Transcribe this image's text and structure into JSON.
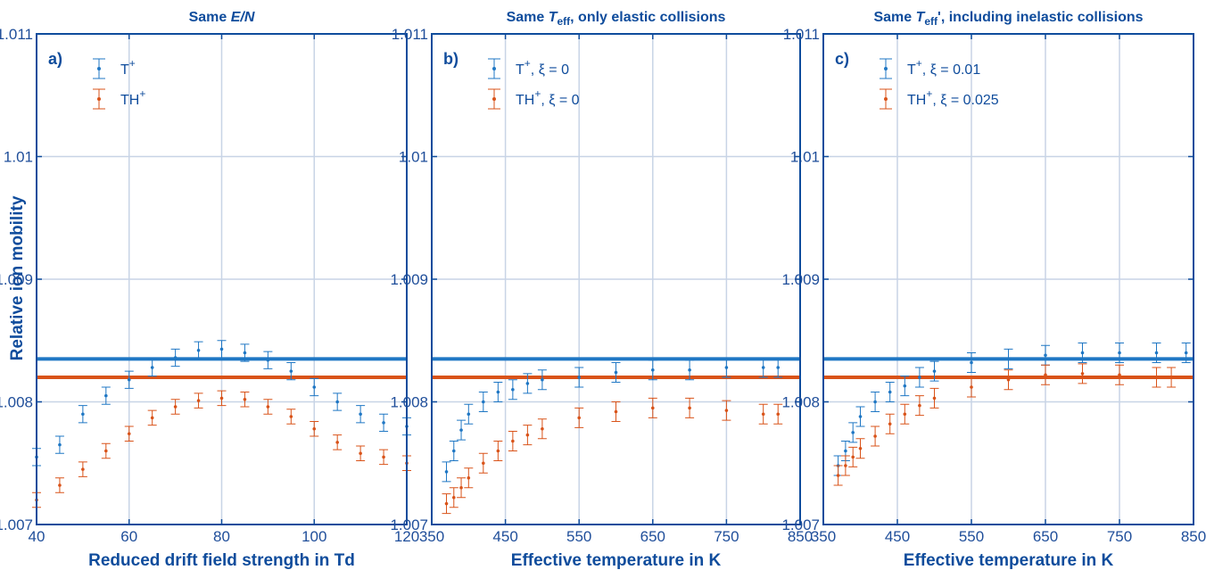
{
  "figure": {
    "ylabel": "Relative ion mobility",
    "colors": {
      "axis": "#0f4c9c",
      "grid": "#c8d4e6",
      "series1": "#1f77c4",
      "series2": "#d95319"
    }
  },
  "chart_data": [
    {
      "type": "scatter",
      "panel": "a)",
      "title": {
        "pre": "Same ",
        "italic": "E/N",
        "sub": "",
        "post": ""
      },
      "xlabel": "Reduced drift field strength in Td",
      "ylabel": "Relative ion mobility",
      "xlim": [
        40,
        120
      ],
      "ylim": [
        1.007,
        1.011
      ],
      "xticks": [
        40,
        60,
        80,
        100,
        120
      ],
      "yticks": [
        1.007,
        1.008,
        1.009,
        1.01,
        1.011
      ],
      "ytick_labels": [
        "1.007",
        "1.008",
        "1.009",
        "1.01",
        "1.011"
      ],
      "grid": true,
      "legend_position": "top-left",
      "reference_lines": [
        {
          "series": "T+",
          "y": 1.00835
        },
        {
          "series": "TH+",
          "y": 1.0082
        }
      ],
      "series": [
        {
          "name": "T+",
          "label_base": "T",
          "label_sup": "+",
          "label_suffix": "",
          "color": "#1f77c4",
          "errorbar": 7e-05,
          "x": [
            40,
            45,
            50,
            55,
            60,
            65,
            70,
            75,
            80,
            85,
            90,
            95,
            100,
            105,
            110,
            115,
            120
          ],
          "y": [
            1.00755,
            1.00765,
            1.0079,
            1.00805,
            1.00818,
            1.00828,
            1.00836,
            1.00842,
            1.00843,
            1.0084,
            1.00834,
            1.00825,
            1.00812,
            1.008,
            1.0079,
            1.00783,
            1.0078
          ]
        },
        {
          "name": "TH+",
          "label_base": "TH",
          "label_sup": "+",
          "label_suffix": "",
          "color": "#d95319",
          "errorbar": 6e-05,
          "x": [
            40,
            45,
            50,
            55,
            60,
            65,
            70,
            75,
            80,
            85,
            90,
            95,
            100,
            105,
            110,
            115,
            120
          ],
          "y": [
            1.0072,
            1.00732,
            1.00745,
            1.0076,
            1.00774,
            1.00787,
            1.00796,
            1.00801,
            1.00803,
            1.00802,
            1.00796,
            1.00788,
            1.00778,
            1.00767,
            1.00758,
            1.00755,
            1.0075
          ]
        }
      ]
    },
    {
      "type": "scatter",
      "panel": "b)",
      "title": {
        "pre": "Same ",
        "italic": "T",
        "sub": "eff",
        "post": ", only elastic collisions"
      },
      "xlabel": "Effective temperature in K",
      "ylabel": "",
      "xlim": [
        350,
        850
      ],
      "ylim": [
        1.007,
        1.011
      ],
      "xticks": [
        350,
        450,
        550,
        650,
        750,
        850
      ],
      "yticks": [
        1.007,
        1.008,
        1.009,
        1.01,
        1.011
      ],
      "ytick_labels": [
        "1.007",
        "1.008",
        "1.009",
        "1.01",
        "1.011"
      ],
      "grid": true,
      "legend_position": "top-left",
      "reference_lines": [
        {
          "series": "T+",
          "y": 1.00835
        },
        {
          "series": "TH+",
          "y": 1.0082
        }
      ],
      "series": [
        {
          "name": "T+, ξ = 0",
          "label_base": "T",
          "label_sup": "+",
          "label_suffix": ", ξ = 0",
          "color": "#1f77c4",
          "errorbar": 8e-05,
          "x": [
            370,
            380,
            390,
            400,
            420,
            440,
            460,
            480,
            500,
            550,
            600,
            650,
            700,
            750,
            800,
            820
          ],
          "y": [
            1.00743,
            1.0076,
            1.00777,
            1.0079,
            1.008,
            1.00808,
            1.0081,
            1.00815,
            1.00818,
            1.0082,
            1.00824,
            1.00826,
            1.00826,
            1.00828,
            1.00828,
            1.00828
          ]
        },
        {
          "name": "TH+, ξ = 0",
          "label_base": "TH",
          "label_sup": "+",
          "label_suffix": ", ξ = 0",
          "color": "#d95319",
          "errorbar": 8e-05,
          "x": [
            370,
            380,
            390,
            400,
            420,
            440,
            460,
            480,
            500,
            550,
            600,
            650,
            700,
            750,
            800,
            820
          ],
          "y": [
            1.00717,
            1.00722,
            1.0073,
            1.00738,
            1.0075,
            1.0076,
            1.00768,
            1.00773,
            1.00778,
            1.00787,
            1.00792,
            1.00795,
            1.00795,
            1.00793,
            1.0079,
            1.0079
          ]
        }
      ]
    },
    {
      "type": "scatter",
      "panel": "c)",
      "title": {
        "pre": "Same ",
        "italic": "T",
        "sub": "eff",
        "post": "', including inelastic collisions"
      },
      "xlabel": "Effective temperature in K",
      "ylabel": "",
      "xlim": [
        350,
        850
      ],
      "ylim": [
        1.007,
        1.011
      ],
      "xticks": [
        350,
        450,
        550,
        650,
        750,
        850
      ],
      "yticks": [
        1.007,
        1.008,
        1.009,
        1.01,
        1.011
      ],
      "ytick_labels": [
        "1.007",
        "1.008",
        "1.009",
        "1.01",
        "1.011"
      ],
      "grid": true,
      "legend_position": "top-left",
      "reference_lines": [
        {
          "series": "T+",
          "y": 1.00835
        },
        {
          "series": "TH+",
          "y": 1.0082
        }
      ],
      "series": [
        {
          "name": "T+, ξ = 0.01",
          "label_base": "T",
          "label_sup": "+",
          "label_suffix": ", ξ = 0.01",
          "color": "#1f77c4",
          "errorbar": 8e-05,
          "x": [
            370,
            380,
            390,
            400,
            420,
            440,
            460,
            480,
            500,
            550,
            600,
            650,
            700,
            750,
            800,
            840
          ],
          "y": [
            1.00748,
            1.0076,
            1.00775,
            1.00788,
            1.008,
            1.00808,
            1.00813,
            1.0082,
            1.00825,
            1.00832,
            1.00835,
            1.00838,
            1.0084,
            1.0084,
            1.0084,
            1.0084
          ]
        },
        {
          "name": "TH+, ξ = 0.025",
          "label_base": "TH",
          "label_sup": "+",
          "label_suffix": ", ξ = 0.025",
          "color": "#d95319",
          "errorbar": 8e-05,
          "x": [
            370,
            380,
            390,
            400,
            420,
            440,
            460,
            480,
            500,
            550,
            600,
            650,
            700,
            750,
            800,
            820
          ],
          "y": [
            1.0074,
            1.00748,
            1.00755,
            1.00762,
            1.00772,
            1.00782,
            1.0079,
            1.00797,
            1.00803,
            1.00812,
            1.00818,
            1.00822,
            1.00823,
            1.00822,
            1.0082,
            1.0082
          ]
        }
      ]
    }
  ]
}
